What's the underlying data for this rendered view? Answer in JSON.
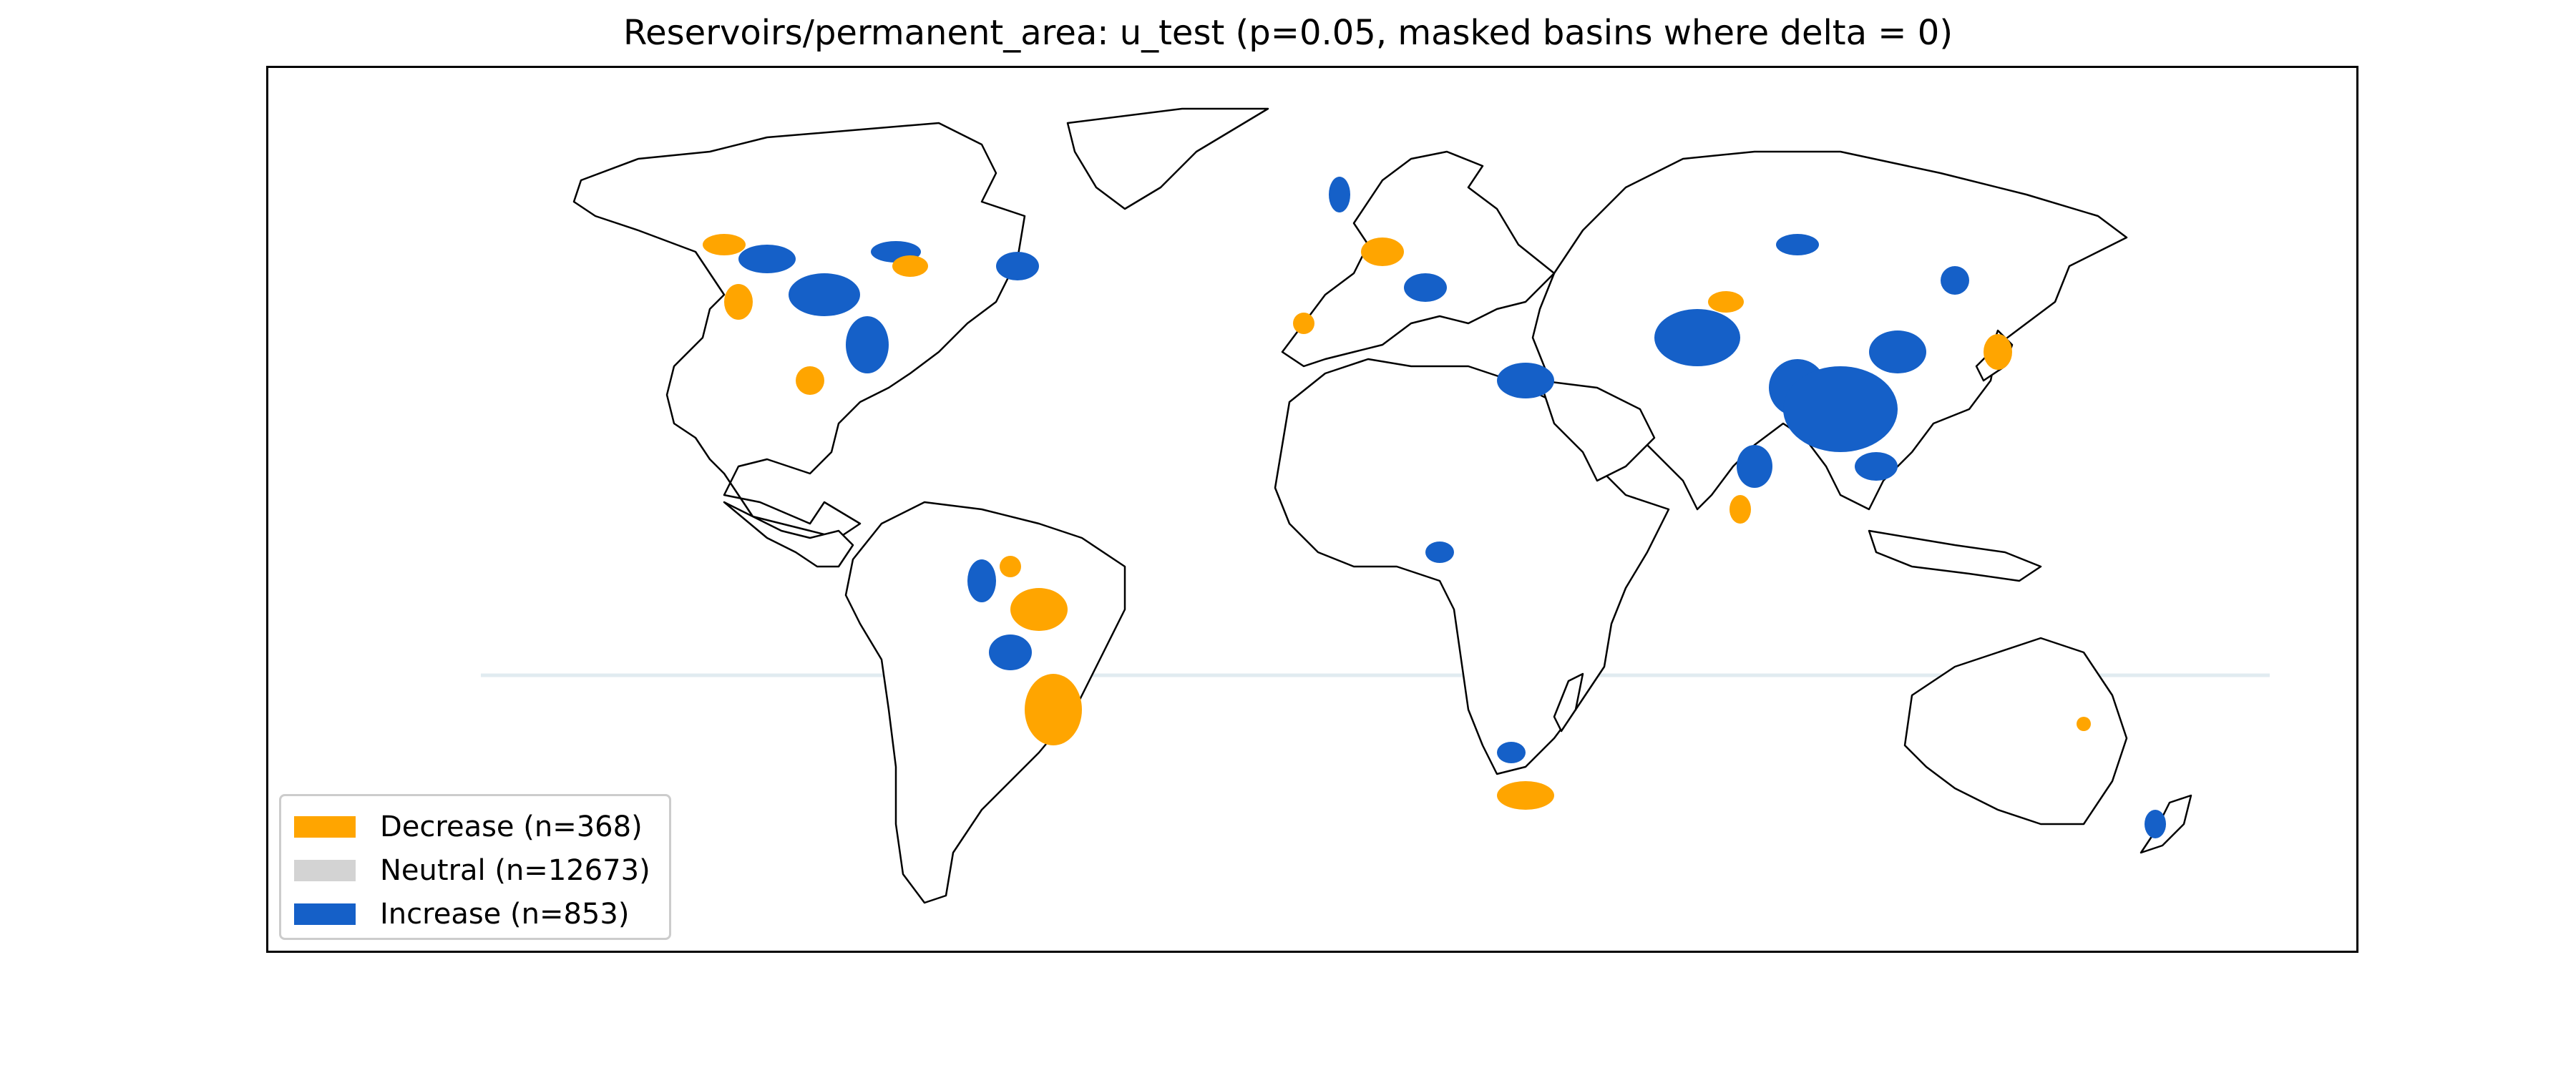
{
  "title": "Reservoirs/permanent_area: u_test (p=0.05, masked basins where delta = 0)",
  "legend": {
    "items": [
      {
        "key": "decrease",
        "label": "Decrease (n=368)",
        "count": 368,
        "color": "#FFA500"
      },
      {
        "key": "neutral",
        "label": "Neutral (n=12673)",
        "count": 12673,
        "color": "#D3D3D3"
      },
      {
        "key": "increase",
        "label": "Increase (n=853)",
        "count": 853,
        "color": "#1560C8"
      }
    ],
    "placement": "lower-left"
  },
  "map": {
    "projection": "Plate Carree",
    "extent": {
      "lon": [
        -180,
        180
      ],
      "lat": [
        -90,
        63
      ]
    },
    "coastline_color": "#000000",
    "equator_line_color": "#E1EBF0"
  },
  "chart_data": {
    "type": "choropleth",
    "test": "u_test",
    "p_value": 0.05,
    "variable": "Reservoirs/permanent_area",
    "categories": [
      "Decrease",
      "Neutral",
      "Increase"
    ],
    "values": [
      368,
      12673,
      853
    ]
  }
}
